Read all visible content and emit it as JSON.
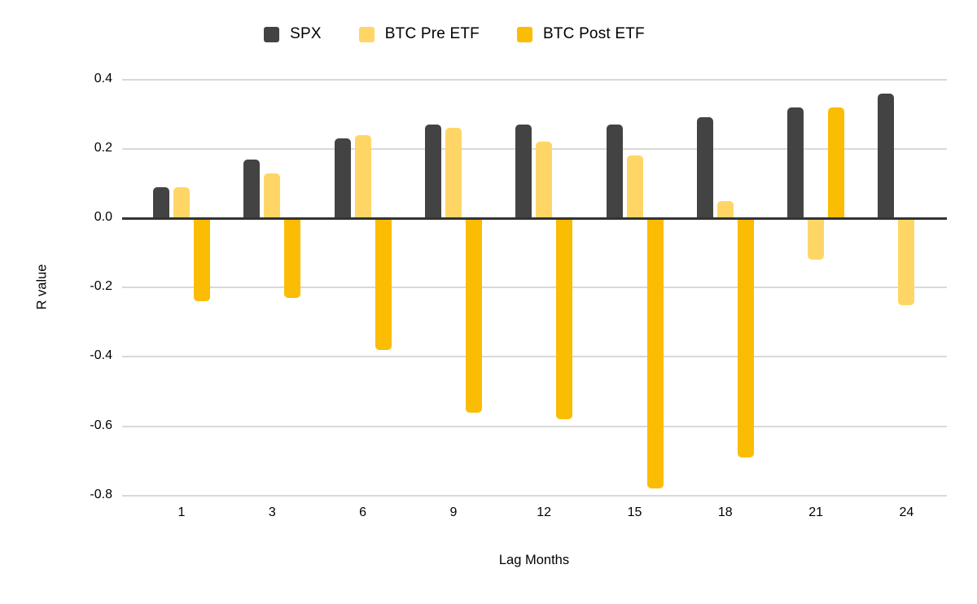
{
  "colors": {
    "background": "#ffffff",
    "spx": "#434343",
    "btc_pre": "#FFD666",
    "btc_post": "#FBBC04",
    "gridline": "#D9D9D9",
    "zero_line": "#333333",
    "text": "#000000"
  },
  "legend": {
    "items": [
      {
        "label": "SPX",
        "color": "#434343"
      },
      {
        "label": "BTC Pre ETF",
        "color": "#FFD666"
      },
      {
        "label": "BTC Post ETF",
        "color": "#FBBC04"
      }
    ]
  },
  "chart_data": {
    "type": "bar",
    "title": "",
    "xlabel": "Lag Months",
    "ylabel": "R value",
    "categories": [
      "1",
      "3",
      "6",
      "9",
      "12",
      "15",
      "18",
      "21",
      "24"
    ],
    "series": [
      {
        "name": "SPX",
        "color": "#434343",
        "values": [
          0.09,
          0.17,
          0.23,
          0.27,
          0.27,
          0.27,
          0.29,
          0.32,
          0.36
        ]
      },
      {
        "name": "BTC Pre ETF",
        "color": "#FFD666",
        "values": [
          0.09,
          0.13,
          0.24,
          0.26,
          0.22,
          0.18,
          0.05,
          -0.12,
          -0.25
        ]
      },
      {
        "name": "BTC Post ETF",
        "color": "#FBBC04",
        "values": [
          -0.24,
          -0.23,
          -0.38,
          -0.56,
          -0.58,
          -0.78,
          -0.69,
          0.32,
          0
        ]
      }
    ],
    "y_ticks": [
      0.4,
      0.2,
      0.0,
      -0.2,
      -0.4,
      -0.6,
      -0.8
    ],
    "y_tick_labels": [
      "0.4",
      "0.2",
      "0.0",
      "-0.2",
      "-0.4",
      "-0.6",
      "-0.8"
    ],
    "ylim": [
      -0.8,
      0.4
    ],
    "grid": true,
    "legend_position": "top"
  }
}
